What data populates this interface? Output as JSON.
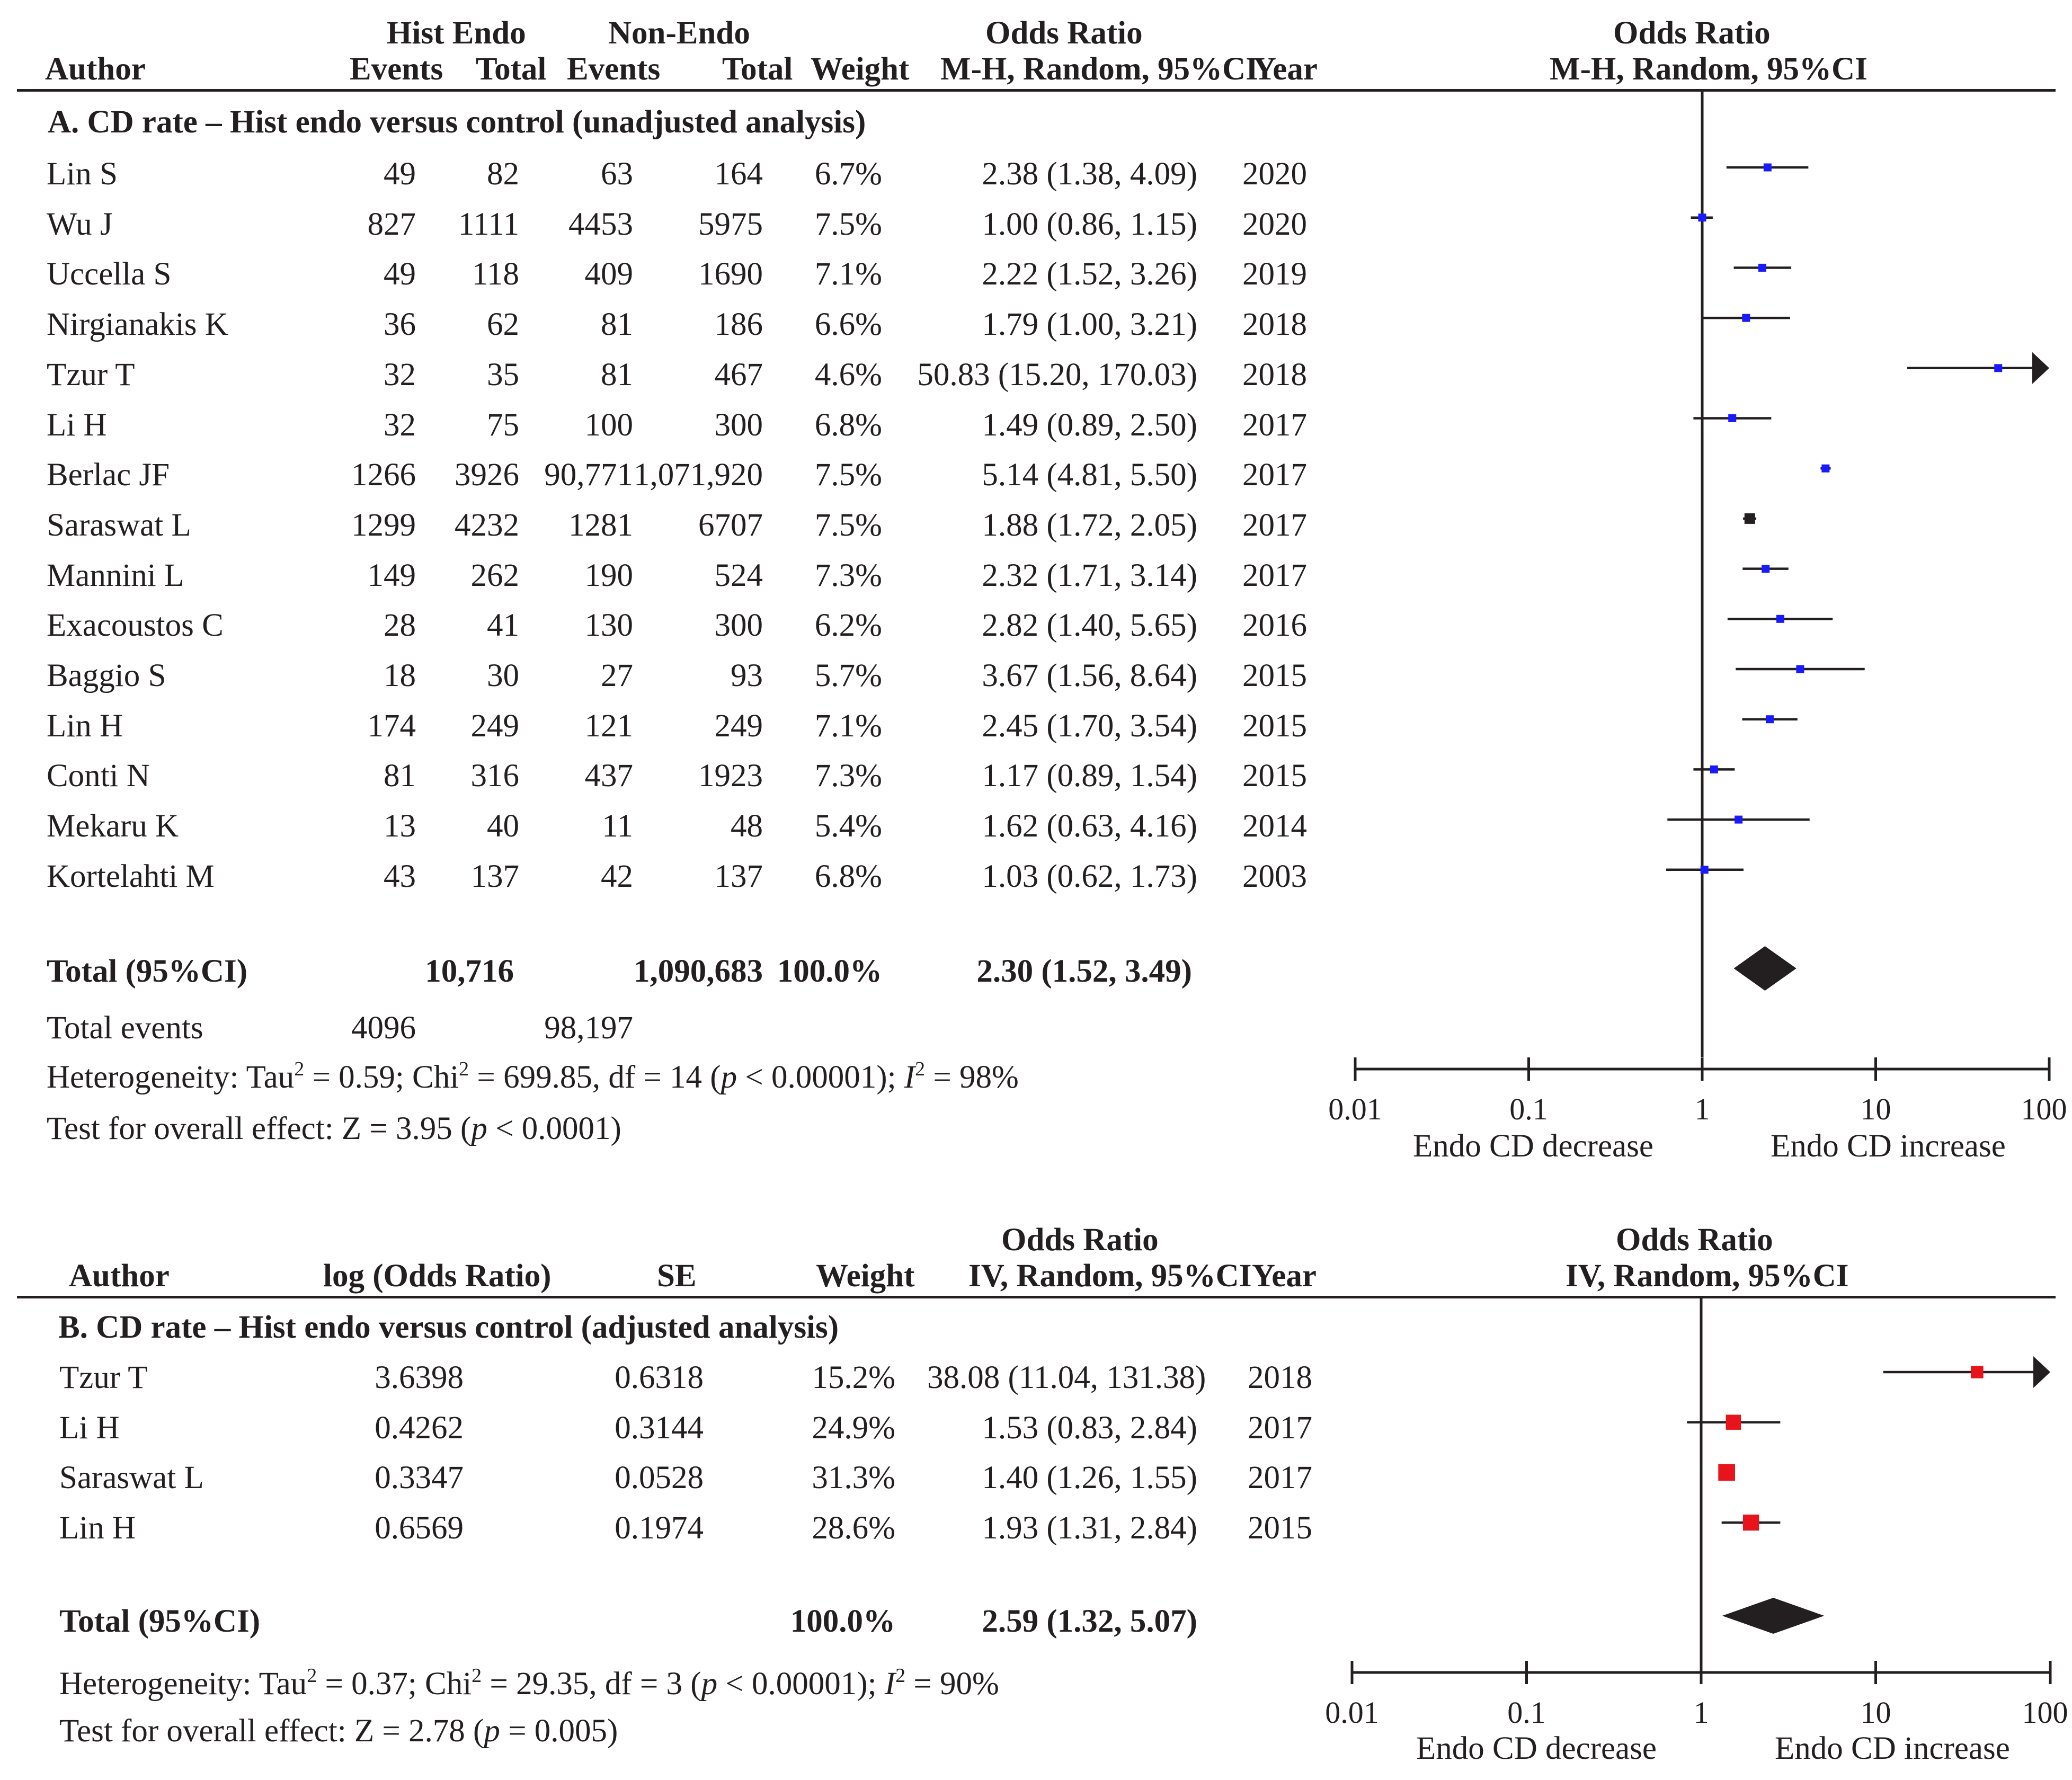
{
  "panelA": {
    "header": {
      "author": "Author",
      "group1": "Hist Endo",
      "group2": "Non-Endo",
      "events": "Events",
      "total": "Total",
      "weight": "Weight",
      "or_title": "Odds Ratio",
      "or_method": "M-H, Random, 95%CI",
      "year": "Year"
    },
    "section_title": "A. CD rate – Hist endo versus control (unadjusted analysis)",
    "rows": [
      {
        "author": "Lin S",
        "e1": "49",
        "t1": "82",
        "e2": "63",
        "t2": "164",
        "weight": "6.7%",
        "ci": "2.38 (1.38, 4.09)",
        "year": "2020"
      },
      {
        "author": "Wu J",
        "e1": "827",
        "t1": "1111",
        "e2": "4453",
        "t2": "5975",
        "weight": "7.5%",
        "ci": "1.00 (0.86, 1.15)",
        "year": "2020"
      },
      {
        "author": "Uccella S",
        "e1": "49",
        "t1": "118",
        "e2": "409",
        "t2": "1690",
        "weight": "7.1%",
        "ci": "2.22 (1.52, 3.26)",
        "year": "2019"
      },
      {
        "author": "Nirgianakis K",
        "e1": "36",
        "t1": "62",
        "e2": "81",
        "t2": "186",
        "weight": "6.6%",
        "ci": "1.79 (1.00, 3.21)",
        "year": "2018"
      },
      {
        "author": "Tzur T",
        "e1": "32",
        "t1": "35",
        "e2": "81",
        "t2": "467",
        "weight": "4.6%",
        "ci": "50.83 (15.20, 170.03)",
        "year": "2018"
      },
      {
        "author": "Li H",
        "e1": "32",
        "t1": "75",
        "e2": "100",
        "t2": "300",
        "weight": "6.8%",
        "ci": "1.49 (0.89, 2.50)",
        "year": "2017"
      },
      {
        "author": "Berlac JF",
        "e1": "1266",
        "t1": "3926",
        "e2": "90,771",
        "t2": "1,071,920",
        "weight": "7.5%",
        "ci": "5.14 (4.81, 5.50)",
        "year": "2017"
      },
      {
        "author": "Saraswat L",
        "e1": "1299",
        "t1": "4232",
        "e2": "1281",
        "t2": "6707",
        "weight": "7.5%",
        "ci": "1.88 (1.72, 2.05)",
        "year": "2017"
      },
      {
        "author": "Mannini L",
        "e1": "149",
        "t1": "262",
        "e2": "190",
        "t2": "524",
        "weight": "7.3%",
        "ci": "2.32 (1.71, 3.14)",
        "year": "2017"
      },
      {
        "author": "Exacoustos C",
        "e1": "28",
        "t1": "41",
        "e2": "130",
        "t2": "300",
        "weight": "6.2%",
        "ci": "2.82 (1.40, 5.65)",
        "year": "2016"
      },
      {
        "author": "Baggio S",
        "e1": "18",
        "t1": "30",
        "e2": "27",
        "t2": "93",
        "weight": "5.7%",
        "ci": "3.67 (1.56, 8.64)",
        "year": "2015"
      },
      {
        "author": "Lin H",
        "e1": "174",
        "t1": "249",
        "e2": "121",
        "t2": "249",
        "weight": "7.1%",
        "ci": "2.45 (1.70, 3.54)",
        "year": "2015"
      },
      {
        "author": "Conti N",
        "e1": "81",
        "t1": "316",
        "e2": "437",
        "t2": "1923",
        "weight": "7.3%",
        "ci": "1.17 (0.89, 1.54)",
        "year": "2015"
      },
      {
        "author": "Mekaru K",
        "e1": "13",
        "t1": "40",
        "e2": "11",
        "t2": "48",
        "weight": "5.4%",
        "ci": "1.62 (0.63, 4.16)",
        "year": "2014"
      },
      {
        "author": "Kortelahti M",
        "e1": "43",
        "t1": "137",
        "e2": "42",
        "t2": "137",
        "weight": "6.8%",
        "ci": "1.03 (0.62, 1.73)",
        "year": "2003"
      }
    ],
    "total": {
      "label": "Total (95%CI)",
      "t1": "10,716",
      "t2": "1,090,683",
      "weight": "100.0%",
      "ci": "2.30 (1.52, 3.49)"
    },
    "total_events": {
      "label": "Total events",
      "e1": "4096",
      "e2": "98,197"
    },
    "heterogeneity": {
      "prefix": "Heterogeneity: Tau",
      "sup1": "2",
      "mid1": " = 0.59; Chi",
      "sup2": "2",
      "mid2": " = 699.85, df = 14 (",
      "p": "p",
      "mid3": " < 0.00001); ",
      "i": "I",
      "sup3": "2",
      "tail": " = 98%"
    },
    "overall": {
      "prefix": "Test for overall effect: Z = 3.95 (",
      "p": "p",
      "tail": " < 0.0001)"
    },
    "axis": {
      "labels": [
        "0.01",
        "0.1",
        "1",
        "10",
        "100"
      ],
      "left_label": "Endo CD decrease",
      "right_label": "Endo CD increase"
    }
  },
  "panelB": {
    "header": {
      "author": "Author",
      "logor": "log (Odds Ratio)",
      "se": "SE",
      "weight": "Weight",
      "or_title": "Odds Ratio",
      "or_method": "IV, Random, 95%CI",
      "year": "Year"
    },
    "section_title": "B. CD rate – Hist endo versus control (adjusted analysis)",
    "rows": [
      {
        "author": "Tzur T",
        "logor": "3.6398",
        "se": "0.6318",
        "weight": "15.2%",
        "ci": "38.08 (11.04, 131.38)",
        "year": "2018"
      },
      {
        "author": "Li H",
        "logor": "0.4262",
        "se": "0.3144",
        "weight": "24.9%",
        "ci": "1.53 (0.83, 2.84)",
        "year": "2017"
      },
      {
        "author": "Saraswat L",
        "logor": "0.3347",
        "se": "0.0528",
        "weight": "31.3%",
        "ci": "1.40 (1.26, 1.55)",
        "year": "2017"
      },
      {
        "author": "Lin H",
        "logor": "0.6569",
        "se": "0.1974",
        "weight": "28.6%",
        "ci": "1.93 (1.31, 2.84)",
        "year": "2015"
      }
    ],
    "total": {
      "label": "Total (95%CI)",
      "weight": "100.0%",
      "ci": "2.59 (1.32, 5.07)"
    },
    "heterogeneity": {
      "prefix": "Heterogeneity: Tau",
      "sup1": "2",
      "mid1": " = 0.37; Chi",
      "sup2": "2",
      "mid2": " = 29.35, df = 3 (",
      "p": "p",
      "mid3": " < 0.00001); ",
      "i": "I",
      "sup3": "2",
      "tail": " = 90%"
    },
    "overall": {
      "prefix": "Test for overall effect: Z = 2.78 (",
      "p": "p",
      "tail": " = 0.005)"
    },
    "axis": {
      "labels": [
        "0.01",
        "0.1",
        "1",
        "10",
        "100"
      ],
      "left_label": "Endo CD decrease",
      "right_label": "Endo CD increase"
    }
  },
  "chart_data": [
    {
      "type": "forest",
      "title": "A. CD rate – Hist endo versus control (unadjusted analysis)",
      "scale": "log",
      "xlim": [
        0.01,
        100
      ],
      "marker_color": "#1a1aff",
      "studies": [
        "Lin S",
        "Wu J",
        "Uccella S",
        "Nirgianakis K",
        "Tzur T",
        "Li H",
        "Berlac JF",
        "Saraswat L",
        "Mannini L",
        "Exacoustos C",
        "Baggio S",
        "Lin H",
        "Conti N",
        "Mekaru K",
        "Kortelahti M"
      ],
      "or": [
        2.38,
        1.0,
        2.22,
        1.79,
        50.83,
        1.49,
        5.14,
        1.88,
        2.32,
        2.82,
        3.67,
        2.45,
        1.17,
        1.62,
        1.03
      ],
      "lower": [
        1.38,
        0.86,
        1.52,
        1.0,
        15.2,
        0.89,
        4.81,
        1.72,
        1.71,
        1.4,
        1.56,
        1.7,
        0.89,
        0.63,
        0.62
      ],
      "upper": [
        4.09,
        1.15,
        3.26,
        3.21,
        170.03,
        2.5,
        5.5,
        2.05,
        3.14,
        5.65,
        8.64,
        3.54,
        1.54,
        4.16,
        1.73
      ],
      "weights": [
        6.7,
        7.5,
        7.1,
        6.6,
        4.6,
        6.8,
        7.5,
        7.5,
        7.3,
        6.2,
        5.7,
        7.1,
        7.3,
        5.4,
        6.8
      ],
      "pooled": {
        "or": 2.3,
        "lower": 1.52,
        "upper": 3.49
      }
    },
    {
      "type": "forest",
      "title": "B. CD rate – Hist endo versus control (adjusted analysis)",
      "scale": "log",
      "xlim": [
        0.01,
        100
      ],
      "marker_color": "#e8141b",
      "studies": [
        "Tzur T",
        "Li H",
        "Saraswat L",
        "Lin H"
      ],
      "or": [
        38.08,
        1.53,
        1.4,
        1.93
      ],
      "lower": [
        11.04,
        0.83,
        1.26,
        1.31
      ],
      "upper": [
        131.38,
        2.84,
        1.55,
        2.84
      ],
      "weights": [
        15.2,
        24.9,
        31.3,
        28.6
      ],
      "pooled": {
        "or": 2.59,
        "lower": 1.32,
        "upper": 5.07
      }
    }
  ]
}
